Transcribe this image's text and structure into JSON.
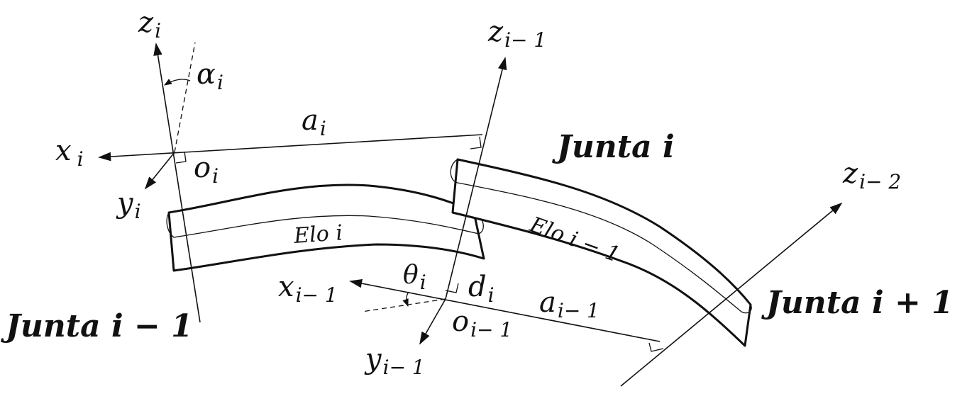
{
  "frame_i": {
    "z": "z",
    "z_sub": "i",
    "x": "x",
    "x_sub": "i",
    "y": "y",
    "y_sub": "i",
    "o": "o",
    "o_sub": "i",
    "alpha": "α",
    "alpha_sub": "i"
  },
  "frame_i_minus_1": {
    "z": "z",
    "z_sub": "i− 1",
    "x": "x",
    "x_sub": "i− 1",
    "y": "y",
    "y_sub": "i− 1",
    "o": "o",
    "o_sub": "i− 1",
    "theta": "θ",
    "theta_sub": "i",
    "d": "d",
    "d_sub": "i"
  },
  "frame_i_minus_2": {
    "z": "z",
    "z_sub": "i− 2"
  },
  "link_params": {
    "a_i": "a",
    "a_i_sub": "i",
    "a_im1": "a",
    "a_im1_sub": "i− 1"
  },
  "links": {
    "elo_i": "Elo i",
    "elo_im1": "Elo  i − 1"
  },
  "joints": {
    "junta_im1": "Junta i − 1",
    "junta_i": "Junta i",
    "junta_ip1": "Junta i + 1"
  }
}
